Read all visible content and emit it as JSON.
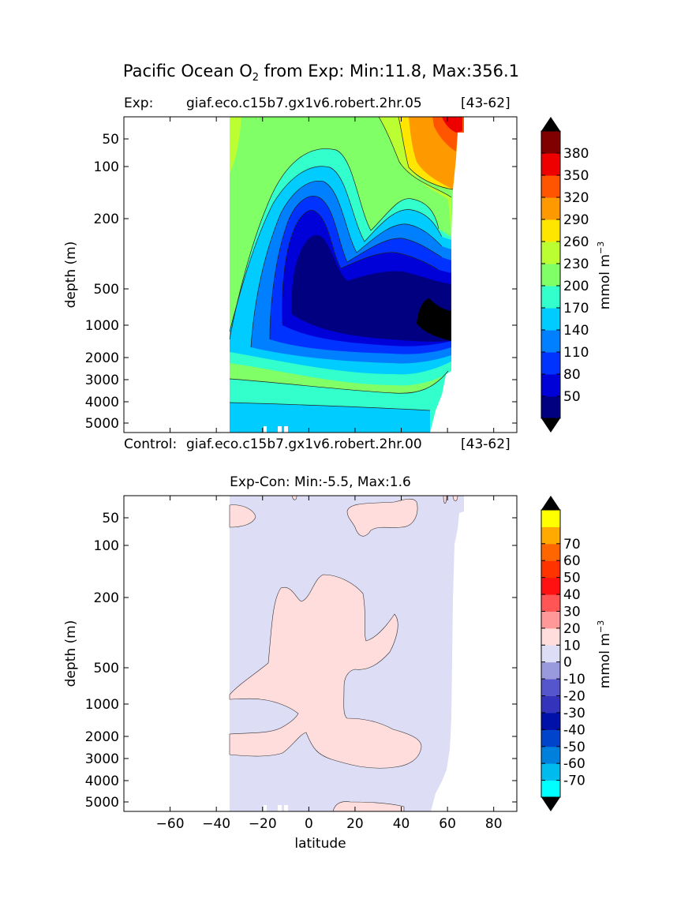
{
  "figure": {
    "title_pre": "Pacific Ocean O",
    "title_sub": "2",
    "title_post": " from Exp: Min:11.8, Max:356.1",
    "exp_label": "Exp:",
    "exp_name": "giaf.eco.c15b7.gx1v6.robert.2hr.05",
    "exp_years": "[43-62]",
    "control_label": "Control:",
    "control_name": "giaf.eco.c15b7.gx1v6.robert.2hr.00",
    "control_years": "[43-62]",
    "diff_title": "Exp-Con: Min:-5.5, Max:1.6"
  },
  "chart_data": [
    {
      "type": "heatmap",
      "panel": "top",
      "ylabel": "depth (m)",
      "yticks": [
        50,
        100,
        200,
        500,
        1000,
        2000,
        3000,
        4000,
        5000
      ],
      "xlim": [
        -80,
        90
      ],
      "ylim": [
        5500,
        30
      ],
      "y_scale": "non-linear (stretched depth)",
      "x_coverage": [
        -34,
        67
      ],
      "colorbar": {
        "label": "mmol m",
        "label_sup": "−3",
        "ticks": [
          "50",
          "80",
          "110",
          "140",
          "170",
          "200",
          "230",
          "260",
          "290",
          "320",
          "350",
          "380"
        ],
        "colors": [
          "#000080",
          "#0000d8",
          "#0033ff",
          "#0080ff",
          "#00ccff",
          "#33ffcc",
          "#80ff66",
          "#bbff33",
          "#ffe600",
          "#ff9900",
          "#ff5500",
          "#ee0000",
          "#800000"
        ],
        "under": "#000000",
        "over": "#000000"
      }
    },
    {
      "type": "heatmap",
      "panel": "bottom",
      "xlabel": "latitude",
      "ylabel": "depth (m)",
      "xticks": [
        -60,
        -40,
        -20,
        0,
        20,
        40,
        60,
        80
      ],
      "yticks": [
        50,
        100,
        200,
        500,
        1000,
        2000,
        3000,
        4000,
        5000
      ],
      "xlim": [
        -80,
        90
      ],
      "ylim": [
        5500,
        30
      ],
      "y_scale": "non-linear (stretched depth)",
      "x_coverage": [
        -34,
        67
      ],
      "colorbar": {
        "label": "mmol m",
        "label_sup": "−3",
        "ticks": [
          "-70",
          "-60",
          "-50",
          "-40",
          "-30",
          "-20",
          "-10",
          "0",
          "10",
          "20",
          "30",
          "40",
          "50",
          "60",
          "70"
        ],
        "colors": [
          "#00ffff",
          "#00bbee",
          "#0080dd",
          "#0044cc",
          "#0011aa",
          "#3333bb",
          "#5555cc",
          "#9999dd",
          "#ddddf5",
          "#ffdddd",
          "#ff9999",
          "#ff5555",
          "#ff1111",
          "#ff3300",
          "#ff6600",
          "#ffaa00",
          "#ffff00"
        ],
        "under": "#000000",
        "over": "#000000"
      }
    }
  ]
}
